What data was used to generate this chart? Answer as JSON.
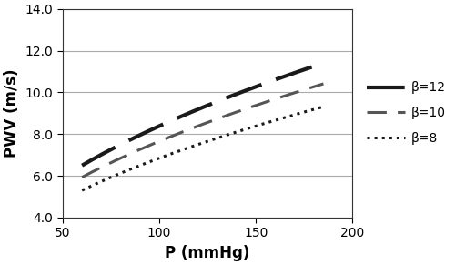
{
  "x_min": 60,
  "x_max": 185,
  "x_axis_min": 50,
  "x_axis_max": 200,
  "y_min": 4.0,
  "y_max": 14.0,
  "x_ticks": [
    50,
    100,
    150,
    200
  ],
  "y_ticks": [
    4.0,
    6.0,
    8.0,
    10.0,
    12.0,
    14.0
  ],
  "xlabel": "P (mmHg)",
  "ylabel": "PWV (m/s)",
  "pwv_scale": 0.242,
  "series": [
    {
      "beta": 12,
      "linestyle": "dashed_bold",
      "color": "#1a1a1a",
      "linewidth": 3.0,
      "label": "β=12"
    },
    {
      "beta": 10,
      "linestyle": "dashed",
      "color": "#555555",
      "linewidth": 2.2,
      "label": "β=10"
    },
    {
      "beta": 8,
      "linestyle": "dotted",
      "color": "#1a1a1a",
      "linewidth": 2.2,
      "label": "β=8"
    }
  ],
  "background_color": "#ffffff",
  "grid_color": "#aaaaaa",
  "figsize": [
    5.0,
    2.91
  ],
  "dpi": 100,
  "legend_labelspacing": 1.0,
  "legend_fontsize": 10
}
